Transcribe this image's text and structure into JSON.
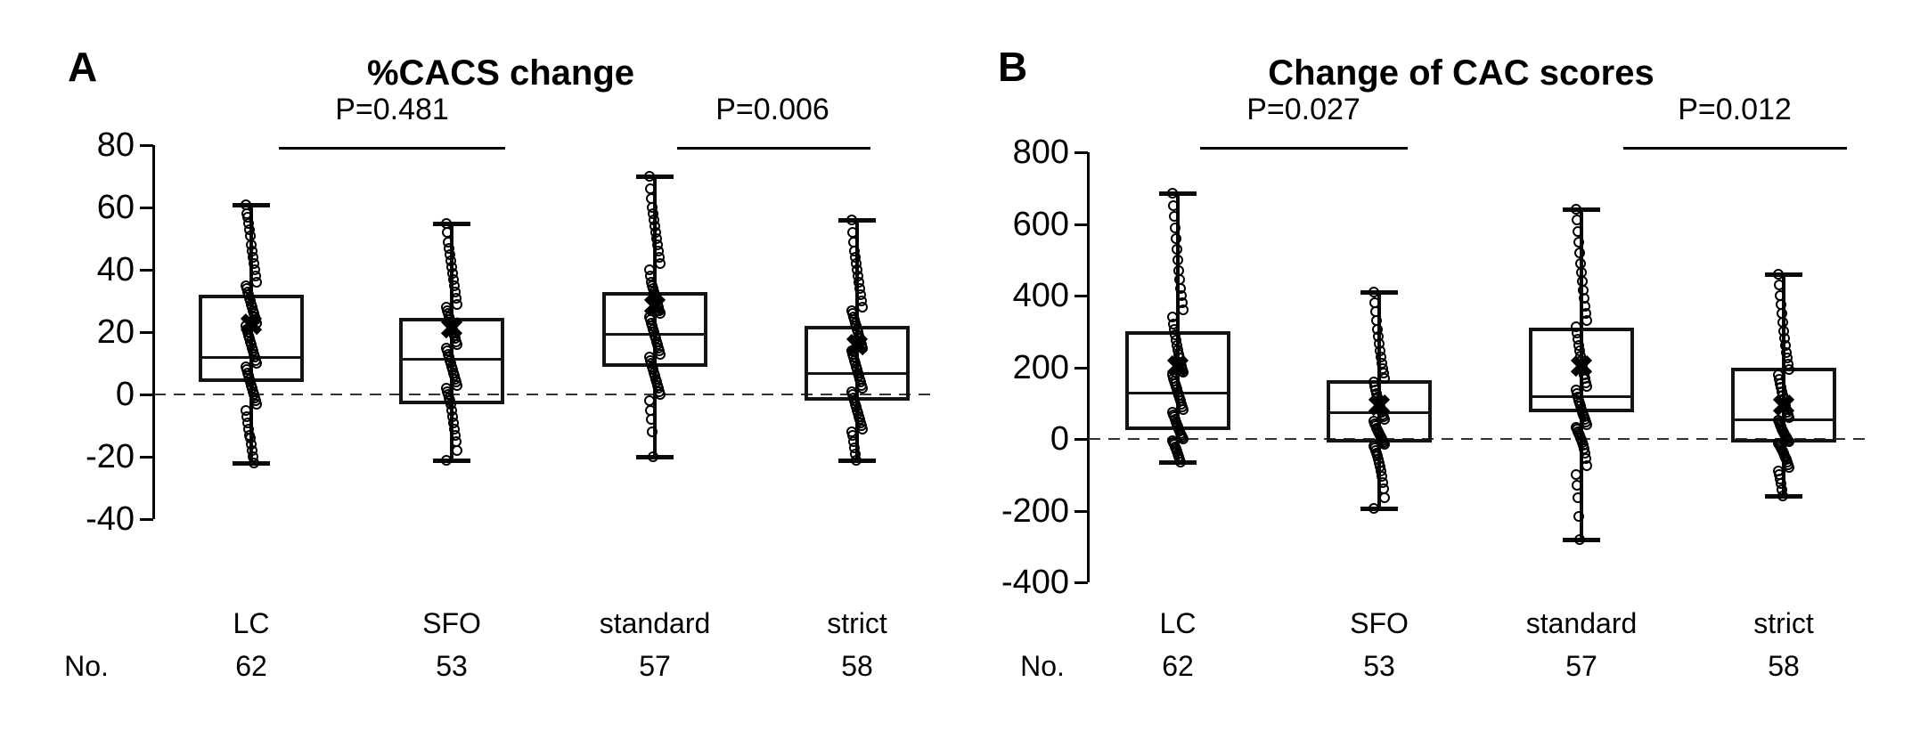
{
  "chart_data": [
    {
      "type": "box",
      "panel_label": "A",
      "title": "%CACS change",
      "ylim": [
        -40,
        80
      ],
      "yticks": [
        80,
        60,
        40,
        20,
        0,
        -20,
        -40
      ],
      "zero_line_dashed": true,
      "legend_position": "none",
      "grid": false,
      "row_label": "No.",
      "categories": [
        "LC",
        "SFO",
        "standard",
        "strict"
      ],
      "n_values": [
        "62",
        "53",
        "57",
        "58"
      ],
      "comparisons": [
        {
          "label": "P=0.481",
          "between": [
            "LC",
            "SFO"
          ]
        },
        {
          "label": "P=0.006",
          "between": [
            "standard",
            "strict"
          ]
        }
      ],
      "groups": [
        {
          "name": "LC",
          "n": 62,
          "whisker_low": -22,
          "q1": 4,
          "median": 12,
          "q3": 32,
          "whisker_high": 61,
          "mean": 22,
          "points": [
            61,
            58,
            57,
            55,
            53,
            51,
            48,
            46,
            44,
            42,
            40,
            38,
            36,
            35,
            34,
            33,
            32,
            31,
            30,
            29,
            28,
            27,
            26,
            25,
            24,
            23,
            22,
            21,
            20,
            19,
            18,
            17,
            16,
            15,
            14,
            13,
            12,
            11,
            10,
            9,
            8,
            7,
            6,
            5,
            4,
            3,
            2,
            1,
            0,
            -1,
            -2,
            -3,
            -5,
            -7,
            -9,
            -11,
            -13,
            -14,
            -16,
            -18,
            -20,
            -22
          ]
        },
        {
          "name": "SFO",
          "n": 53,
          "whisker_low": -21,
          "q1": -3,
          "median": 11.5,
          "q3": 24.5,
          "whisker_high": 55,
          "mean": 21,
          "points": [
            55,
            52,
            49,
            47,
            45,
            43,
            41,
            39,
            37,
            35,
            33,
            31,
            29,
            28,
            27,
            26,
            25,
            24,
            23,
            22,
            21,
            20,
            19,
            18,
            17,
            16,
            15,
            14,
            13,
            12,
            11,
            10,
            9,
            8,
            7,
            6,
            5,
            4,
            3,
            2,
            1,
            0,
            -1,
            -2,
            -3,
            -5,
            -7,
            -9,
            -11,
            -13,
            -15,
            -18,
            -21
          ]
        },
        {
          "name": "standard",
          "n": 57,
          "whisker_low": -20,
          "q1": 9,
          "median": 19.5,
          "q3": 33,
          "whisker_high": 70,
          "mean": 28,
          "points": [
            70,
            66,
            63,
            60,
            58,
            56,
            54,
            52,
            50,
            48,
            46,
            44,
            42,
            40,
            38,
            36,
            35,
            34,
            33,
            32,
            31,
            30,
            29,
            28,
            27,
            26,
            25,
            24,
            23,
            22,
            21,
            20,
            19,
            18,
            17,
            16,
            15,
            14,
            13,
            12,
            11,
            10,
            9,
            8,
            7,
            6,
            5,
            4,
            3,
            2,
            1,
            0,
            -2,
            -5,
            -8,
            -12,
            -20
          ]
        },
        {
          "name": "strict",
          "n": 58,
          "whisker_low": -21,
          "q1": -2,
          "median": 7,
          "q3": 22,
          "whisker_high": 56,
          "mean": 15.5,
          "points": [
            56,
            52,
            49,
            46,
            44,
            42,
            40,
            38,
            36,
            34,
            32,
            30,
            28,
            27,
            26,
            25,
            24,
            23,
            22,
            21,
            20,
            19,
            18,
            17,
            16,
            15,
            14,
            13,
            12,
            11,
            10,
            9,
            8,
            7,
            6,
            5,
            4,
            3,
            2,
            1,
            0,
            -1,
            -2,
            -3,
            -4,
            -5,
            -6,
            -7,
            -8,
            -9,
            -10,
            -11,
            -12,
            -13,
            -15,
            -17,
            -19,
            -21
          ]
        }
      ]
    },
    {
      "type": "box",
      "panel_label": "B",
      "title": "Change of CAC scores",
      "ylim": [
        -400,
        800
      ],
      "yticks": [
        800,
        600,
        400,
        200,
        0,
        -200,
        -400
      ],
      "zero_line_dashed": true,
      "legend_position": "none",
      "grid": false,
      "row_label": "No.",
      "categories": [
        "LC",
        "SFO",
        "standard",
        "strict"
      ],
      "n_values": [
        "62",
        "53",
        "57",
        "58"
      ],
      "comparisons": [
        {
          "label": "P=0.027",
          "between": [
            "LC",
            "SFO"
          ]
        },
        {
          "label": "P=0.012",
          "between": [
            "standard",
            "strict"
          ]
        }
      ],
      "groups": [
        {
          "name": "LC",
          "n": 62,
          "whisker_low": -65,
          "q1": 25,
          "median": 130,
          "q3": 300,
          "whisker_high": 685,
          "mean": 200,
          "points": [
            685,
            650,
            620,
            590,
            560,
            530,
            500,
            470,
            445,
            420,
            400,
            380,
            360,
            340,
            320,
            305,
            290,
            275,
            260,
            248,
            236,
            225,
            214,
            204,
            195,
            186,
            178,
            170,
            162,
            154,
            146,
            138,
            130,
            122,
            114,
            106,
            98,
            90,
            82,
            75,
            68,
            61,
            54,
            47,
            40,
            34,
            28,
            22,
            16,
            10,
            5,
            0,
            -5,
            -10,
            -16,
            -22,
            -28,
            -35,
            -42,
            -50,
            -58,
            -65
          ]
        },
        {
          "name": "SFO",
          "n": 53,
          "whisker_low": -195,
          "q1": -10,
          "median": 75,
          "q3": 165,
          "whisker_high": 410,
          "mean": 90,
          "points": [
            410,
            380,
            355,
            330,
            305,
            285,
            265,
            245,
            228,
            212,
            197,
            183,
            170,
            158,
            147,
            136,
            126,
            116,
            107,
            98,
            90,
            82,
            75,
            68,
            61,
            55,
            49,
            43,
            37,
            31,
            26,
            21,
            16,
            11,
            6,
            1,
            -4,
            -9,
            -14,
            -19,
            -25,
            -32,
            -40,
            -48,
            -57,
            -67,
            -78,
            -90,
            -105,
            -122,
            -140,
            -165,
            -195
          ]
        },
        {
          "name": "standard",
          "n": 57,
          "whisker_low": -280,
          "q1": 75,
          "median": 120,
          "q3": 310,
          "whisker_high": 640,
          "mean": 200,
          "points": [
            640,
            610,
            580,
            550,
            520,
            490,
            465,
            440,
            415,
            392,
            370,
            350,
            330,
            312,
            295,
            278,
            262,
            247,
            232,
            218,
            205,
            192,
            180,
            168,
            157,
            146,
            136,
            126,
            117,
            108,
            99,
            91,
            83,
            75,
            68,
            61,
            54,
            47,
            40,
            33,
            27,
            21,
            15,
            9,
            3,
            -3,
            -10,
            -18,
            -28,
            -40,
            -55,
            -75,
            -100,
            -130,
            -165,
            -215,
            -280
          ]
        },
        {
          "name": "strict",
          "n": 58,
          "whisker_low": -160,
          "q1": -10,
          "median": 55,
          "q3": 200,
          "whisker_high": 460,
          "mean": 90,
          "points": [
            460,
            430,
            400,
            375,
            350,
            325,
            300,
            280,
            260,
            242,
            225,
            209,
            194,
            180,
            167,
            155,
            143,
            132,
            121,
            111,
            101,
            92,
            83,
            75,
            67,
            60,
            53,
            46,
            40,
            34,
            28,
            23,
            18,
            13,
            8,
            4,
            0,
            -4,
            -8,
            -12,
            -16,
            -20,
            -25,
            -30,
            -35,
            -40,
            -46,
            -52,
            -58,
            -65,
            -72,
            -80,
            -90,
            -100,
            -112,
            -125,
            -142,
            -160
          ]
        }
      ]
    }
  ]
}
